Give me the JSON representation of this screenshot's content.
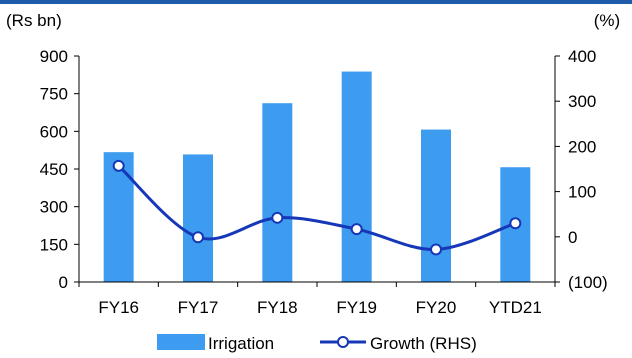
{
  "chart_data": {
    "type": "bar",
    "categories": [
      "FY16",
      "FY17",
      "FY18",
      "FY19",
      "FY20",
      "YTD21"
    ],
    "left_axis": {
      "unit_label": "(Rs bn)",
      "ylim": [
        0,
        900
      ],
      "ticks": [
        0,
        150,
        300,
        450,
        600,
        750,
        900
      ],
      "tick_labels": [
        "0",
        "150",
        "300",
        "450",
        "600",
        "750",
        "900"
      ]
    },
    "right_axis": {
      "unit_label": "(%)",
      "ylim": [
        -100,
        400
      ],
      "ticks": [
        -100,
        0,
        100,
        200,
        300,
        400
      ],
      "tick_labels": [
        "(100)",
        "0",
        "100",
        "200",
        "300",
        "400"
      ]
    },
    "series": [
      {
        "name": "Irrigation",
        "kind": "bar",
        "axis": "left",
        "color": "#3d9cf0",
        "values": [
          517,
          508,
          712,
          838,
          607,
          457
        ]
      },
      {
        "name": "Growth (RHS)",
        "kind": "line",
        "axis": "right",
        "color": "#1537b8",
        "marker": "circle-open",
        "values": [
          157,
          -1,
          42,
          17,
          -28,
          30
        ]
      }
    ],
    "legend": {
      "position": "bottom",
      "items": [
        "Irrigation",
        "Growth (RHS)"
      ]
    },
    "grid": false
  }
}
